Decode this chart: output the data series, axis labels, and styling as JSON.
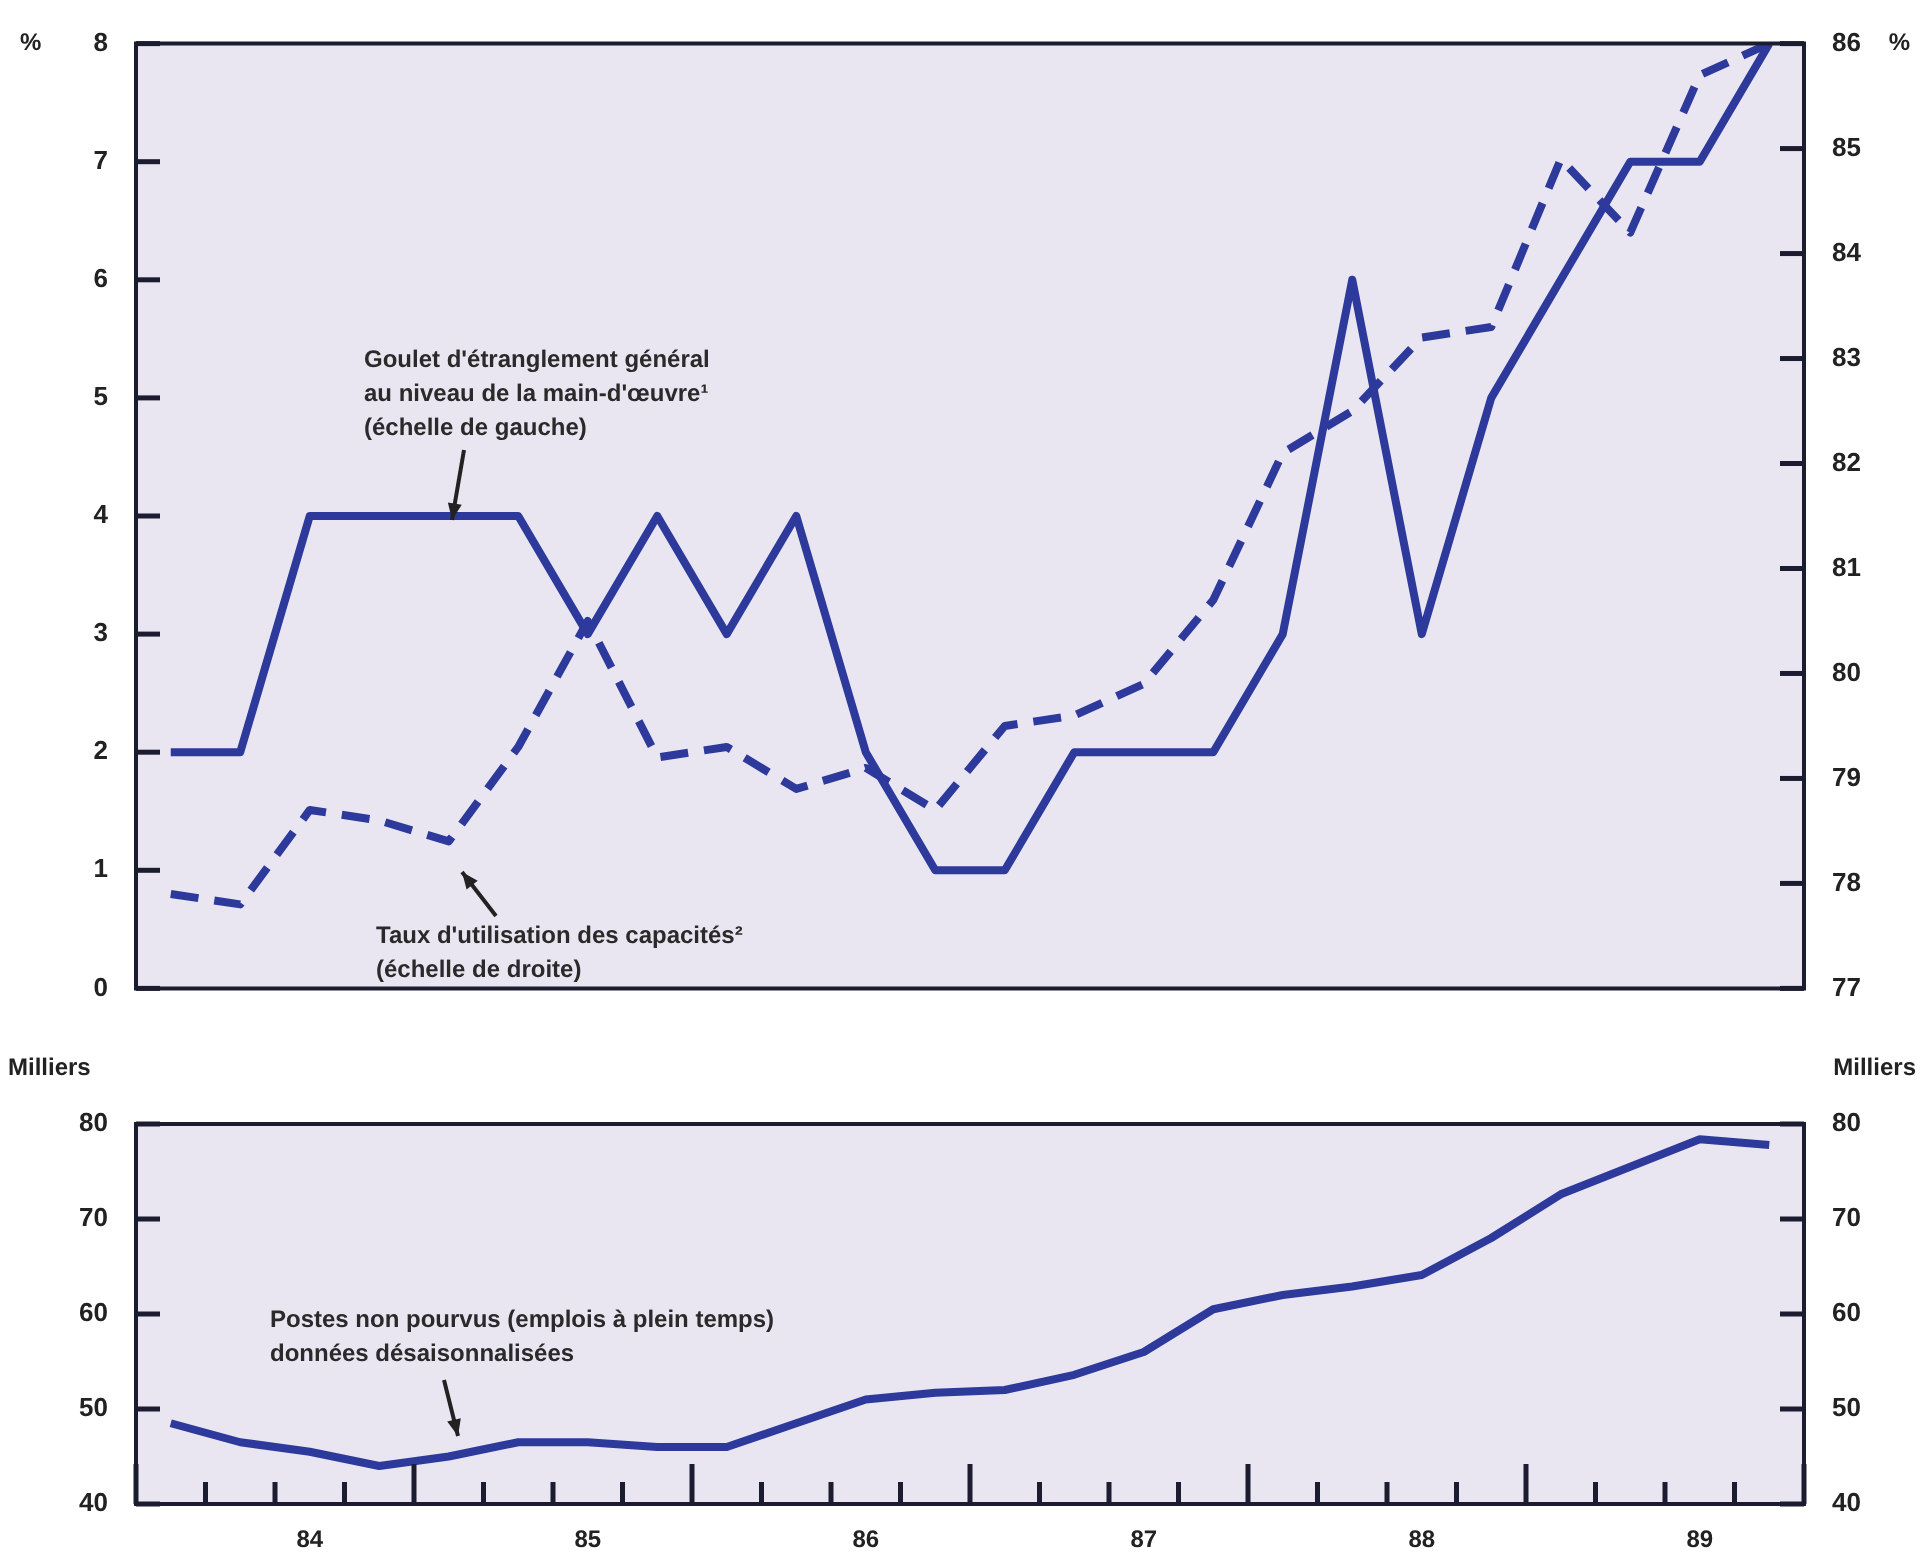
{
  "chart_data": [
    {
      "type": "line",
      "ylabel": "%",
      "y2label": "%",
      "tick_labels": "y",
      "ylim": [
        0,
        8
      ],
      "yticks": [
        0,
        1,
        2,
        3,
        4,
        5,
        6,
        7,
        8
      ],
      "y2lim": [
        77,
        86
      ],
      "y2ticks": [
        77,
        78,
        79,
        80,
        81,
        82,
        83,
        84,
        85,
        86
      ],
      "categories": [
        null,
        null,
        null,
        null,
        null,
        null,
        null,
        null,
        null,
        null,
        null,
        null,
        null,
        null,
        null,
        null,
        null,
        null,
        null,
        null,
        null,
        null,
        null,
        null
      ],
      "series": [
        {
          "color": "#2d3a9c",
          "line_style": "solid",
          "values": [
            2,
            2,
            4,
            4,
            4,
            4,
            3,
            4,
            3,
            4,
            2,
            1,
            1,
            2,
            2,
            2,
            3,
            6,
            3,
            5,
            6,
            7,
            7,
            8
          ]
        },
        {
          "color": "#2d3a9c",
          "line_style": "dashed",
          "axis": "y2",
          "values": [
            77.9,
            77.8,
            78.7,
            78.6,
            78.4,
            79.3,
            80.5,
            79.2,
            79.3,
            78.9,
            79.1,
            78.7,
            79.5,
            79.6,
            79.9,
            80.7,
            82.1,
            82.5,
            83.2,
            83.3,
            84.9,
            84.2,
            85.7,
            86.0
          ]
        }
      ],
      "annotations": [
        "Goulet d'étranglement général\nau niveau de la main-d'œuvre¹\n(échelle de gauche)",
        "Taux d'utilisation des capacités²\n(échelle de droite)"
      ]
    },
    {
      "type": "line",
      "ylabel": "Milliers",
      "y2label": "Milliers",
      "ylim": [
        40,
        80
      ],
      "yticks": [
        40,
        50,
        60,
        70,
        80
      ],
      "y2lim": [
        40,
        80
      ],
      "y2ticks": [
        40,
        50,
        60,
        70,
        80
      ],
      "categories": [
        null,
        null,
        "84",
        null,
        null,
        null,
        "85",
        null,
        null,
        null,
        "86",
        null,
        null,
        null,
        "87",
        null,
        null,
        null,
        "88",
        null,
        null,
        null,
        "89",
        null
      ],
      "series": [
        {
          "color": "#2d3a9c",
          "line_style": "solid",
          "values": [
            48.5,
            46.5,
            45.5,
            44,
            45,
            46.5,
            46.5,
            46,
            46,
            48.5,
            51,
            51.7,
            52,
            53.6,
            56,
            60.5,
            62,
            62.9,
            64.1,
            68,
            72.6,
            75.5,
            78.4,
            77.8
          ]
        }
      ],
      "annotations": [
        "Postes non pourvus (emplois à plein temps)\ndonnées désaisonnalisées"
      ]
    }
  ]
}
